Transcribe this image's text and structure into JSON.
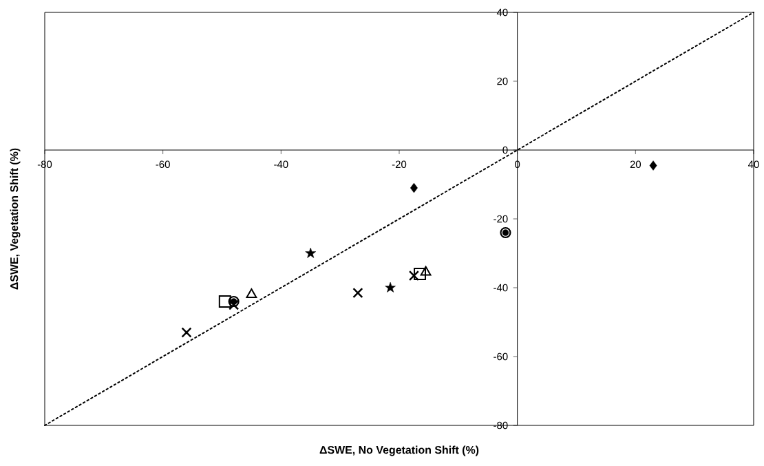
{
  "chart_data": {
    "type": "scatter",
    "xlabel": "ΔSWE, No Vegetation Shift (%)",
    "ylabel": "ΔSWE, Vegetation Shift (%)",
    "xlim": [
      -80,
      40
    ],
    "ylim": [
      -80,
      40
    ],
    "xticks": [
      -80,
      -60,
      -40,
      -20,
      0,
      20,
      40
    ],
    "yticks": [
      -80,
      -60,
      -40,
      -20,
      0,
      20,
      40
    ],
    "grid": false,
    "series": [
      {
        "type": "line",
        "color": "#000000",
        "line_style": "dotted",
        "marker": "none",
        "x": [
          -80,
          40
        ],
        "values": [
          -80,
          40
        ]
      },
      {
        "color": "#000000",
        "marker": "diamond",
        "x": [
          -17.5,
          23
        ],
        "values": [
          -11,
          -4.5
        ]
      },
      {
        "color": "#000000",
        "marker": "circle",
        "x": [
          -2,
          -48
        ],
        "values": [
          -24,
          -44
        ]
      },
      {
        "color": "#000000",
        "marker": "star",
        "x": [
          -35,
          -21.5
        ],
        "values": [
          -30,
          -40
        ]
      },
      {
        "color": "#000000",
        "marker": "cross",
        "x": [
          -56,
          -27,
          -17.5,
          -48
        ],
        "values": [
          -53,
          -41.5,
          -36.5,
          -45
        ]
      },
      {
        "color": "#000000",
        "marker": "triangle",
        "x": [
          -45,
          -15.5
        ],
        "values": [
          -42,
          -35.5
        ]
      },
      {
        "color": "#000000",
        "marker": "square",
        "x": [
          -49.5,
          -16.5
        ],
        "values": [
          -44,
          -36
        ]
      }
    ]
  }
}
